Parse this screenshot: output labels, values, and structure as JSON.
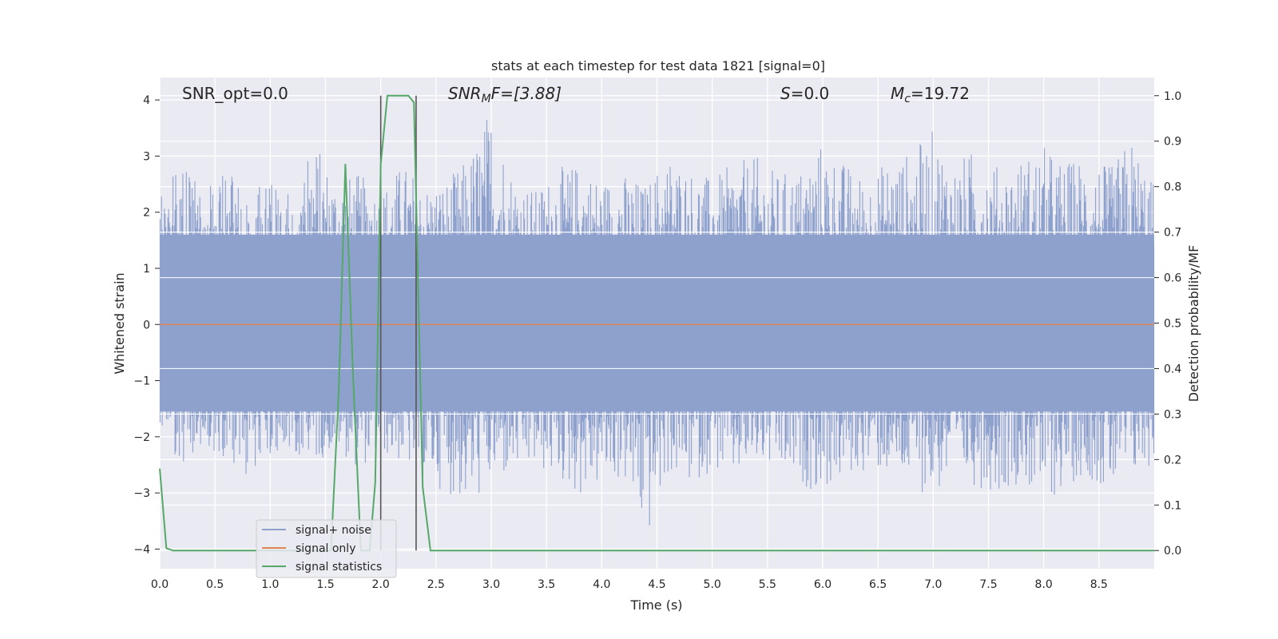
{
  "chart_data": {
    "type": "line",
    "title": "stats at each timestep for test data 1821 [signal=0]",
    "xlabel": "Time (s)",
    "ylabel": "Whitened strain",
    "y2label": "Detection probability/MF",
    "xlim": [
      0,
      9.0
    ],
    "ylim": [
      -4.35,
      4.4
    ],
    "y2lim": [
      -0.04,
      1.04
    ],
    "grid": true,
    "legend_position": "lower-left",
    "x_ticks": [
      "0.0",
      "0.5",
      "1.0",
      "1.5",
      "2.0",
      "2.5",
      "3.0",
      "3.5",
      "4.0",
      "4.5",
      "5.0",
      "5.5",
      "6.0",
      "6.5",
      "7.0",
      "7.5",
      "8.0",
      "8.5"
    ],
    "y_ticks": [
      "4",
      "3",
      "2",
      "1",
      "0",
      "−1",
      "−2",
      "−3",
      "−4"
    ],
    "y2_ticks": [
      "1.0",
      "0.9",
      "0.8",
      "0.7",
      "0.6",
      "0.5",
      "0.4",
      "0.3",
      "0.2",
      "0.1",
      "0.0"
    ],
    "annotations": {
      "snr_opt": "SNR_opt=0.0",
      "snr_mf_main": "SNR",
      "snr_mf_sub": "M",
      "snr_mf_rest": "F=[3.88]",
      "s_main": "S",
      "s_rest": "=0.0",
      "mc_main": "M",
      "mc_sub": "c",
      "mc_rest": "=19.72"
    },
    "vertical_markers_x": [
      2.0,
      2.32
    ],
    "series": [
      {
        "name": "signal+ noise",
        "color": "#8ea1cd",
        "axis": "left",
        "description_free": true,
        "envelope_x": [
          0.0,
          0.2,
          0.4,
          0.6,
          0.8,
          1.0,
          1.2,
          1.4,
          1.6,
          1.8,
          2.0,
          2.2,
          2.4,
          2.6,
          2.8,
          3.0,
          3.2,
          3.4,
          3.6,
          3.8,
          4.0,
          4.2,
          4.4,
          4.6,
          4.8,
          5.0,
          5.2,
          5.4,
          5.6,
          5.8,
          6.0,
          6.2,
          6.4,
          6.6,
          6.8,
          7.0,
          7.2,
          7.4,
          7.6,
          7.8,
          8.0,
          8.2,
          8.4,
          8.6,
          8.8,
          9.0
        ],
        "envelope_upper": [
          2.3,
          2.9,
          2.4,
          2.7,
          2.6,
          2.5,
          2.4,
          3.3,
          2.6,
          2.7,
          2.4,
          2.9,
          2.5,
          2.6,
          3.0,
          4.0,
          2.7,
          2.4,
          2.8,
          2.9,
          2.6,
          2.7,
          2.5,
          3.1,
          2.8,
          2.6,
          2.9,
          3.0,
          2.7,
          2.8,
          3.3,
          2.9,
          2.6,
          3.0,
          3.1,
          3.5,
          2.9,
          3.2,
          2.8,
          3.0,
          3.2,
          2.9,
          3.1,
          2.8,
          3.4,
          2.5
        ],
        "envelope_lower": [
          -2.3,
          -2.6,
          -2.2,
          -2.4,
          -2.7,
          -2.3,
          -2.4,
          -2.5,
          -2.2,
          -2.6,
          -2.3,
          -2.5,
          -2.8,
          -3.0,
          -3.3,
          -2.9,
          -2.7,
          -2.6,
          -2.8,
          -3.1,
          -2.9,
          -2.8,
          -4.0,
          -2.7,
          -2.9,
          -2.6,
          -2.8,
          -2.5,
          -2.7,
          -2.9,
          -3.0,
          -2.8,
          -2.6,
          -2.7,
          -2.9,
          -3.1,
          -2.8,
          -2.9,
          -3.0,
          -2.8,
          -3.3,
          -2.9,
          -2.7,
          -3.1,
          -2.8,
          -2.5
        ]
      },
      {
        "name": "signal only",
        "color": "#dd8452",
        "axis": "left",
        "x": [
          0.0,
          9.0
        ],
        "y": [
          0.0,
          0.0
        ]
      },
      {
        "name": "signal statistics",
        "color": "#55a868",
        "axis": "right",
        "x": [
          0.0,
          0.06,
          0.12,
          1.55,
          1.62,
          1.68,
          1.75,
          1.82,
          1.9,
          1.95,
          2.0,
          2.06,
          2.12,
          2.18,
          2.25,
          2.3,
          2.38,
          2.45,
          2.52,
          9.0
        ],
        "y": [
          0.18,
          0.005,
          0.0,
          0.0,
          0.35,
          0.85,
          0.38,
          0.0,
          0.0,
          0.15,
          0.85,
          1.0,
          1.0,
          1.0,
          1.0,
          0.985,
          0.14,
          0.0,
          0.0,
          0.0
        ]
      }
    ]
  }
}
